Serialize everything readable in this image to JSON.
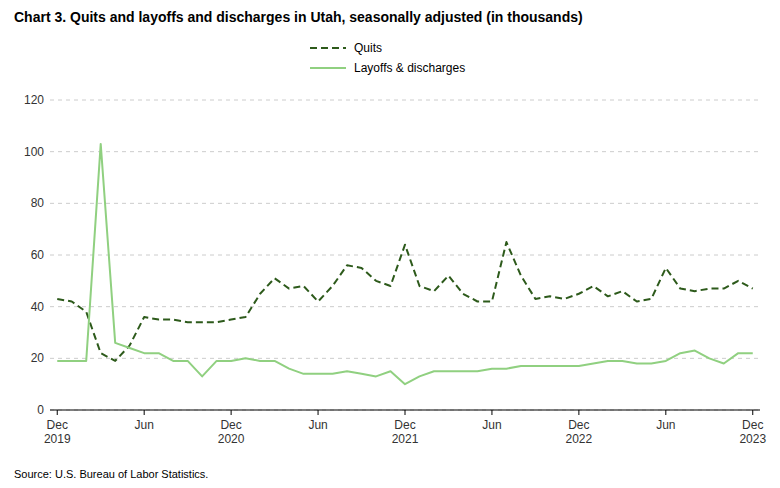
{
  "chart_data": {
    "type": "line",
    "title": "Chart 3. Quits and layoffs and discharges in Utah, seasonally adjusted (in thousands)",
    "source": "Source: U.S. Bureau of Labor Statistics.",
    "categories": [
      "Dec\n2019",
      null,
      null,
      null,
      null,
      null,
      "Jun",
      null,
      null,
      null,
      null,
      null,
      "Dec\n2020",
      null,
      null,
      null,
      null,
      null,
      "Jun",
      null,
      null,
      null,
      null,
      null,
      "Dec\n2021",
      null,
      null,
      null,
      null,
      null,
      "Jun",
      null,
      null,
      null,
      null,
      null,
      "Dec\n2022",
      null,
      null,
      null,
      null,
      null,
      "Jun",
      null,
      null,
      null,
      null,
      null,
      "Dec\n2023"
    ],
    "series": [
      {
        "name": "Quits",
        "color": "#2d5a1b",
        "line_style": "dashed",
        "values": [
          43,
          42,
          38,
          22,
          19,
          25,
          36,
          35,
          35,
          34,
          34,
          34,
          35,
          36,
          45,
          51,
          47,
          48,
          42,
          48,
          56,
          55,
          50,
          48,
          64,
          48,
          46,
          52,
          45,
          42,
          42,
          65,
          52,
          43,
          44,
          43,
          45,
          48,
          44,
          46,
          42,
          43,
          55,
          47,
          46,
          47,
          47,
          50,
          47
        ]
      },
      {
        "name": "Layoffs & discharges",
        "color": "#90d080",
        "line_style": "solid",
        "values": [
          19,
          19,
          19,
          103,
          26,
          24,
          22,
          22,
          19,
          19,
          13,
          19,
          19,
          20,
          19,
          19,
          16,
          14,
          14,
          14,
          15,
          14,
          13,
          15,
          10,
          13,
          15,
          15,
          15,
          15,
          16,
          16,
          17,
          17,
          17,
          17,
          17,
          18,
          19,
          19,
          18,
          18,
          19,
          22,
          23,
          20,
          18,
          22,
          22
        ]
      }
    ],
    "ylim": [
      0,
      120
    ],
    "yticks": [
      0,
      20,
      40,
      60,
      80,
      100,
      120
    ],
    "grid": true,
    "legend": "top"
  }
}
